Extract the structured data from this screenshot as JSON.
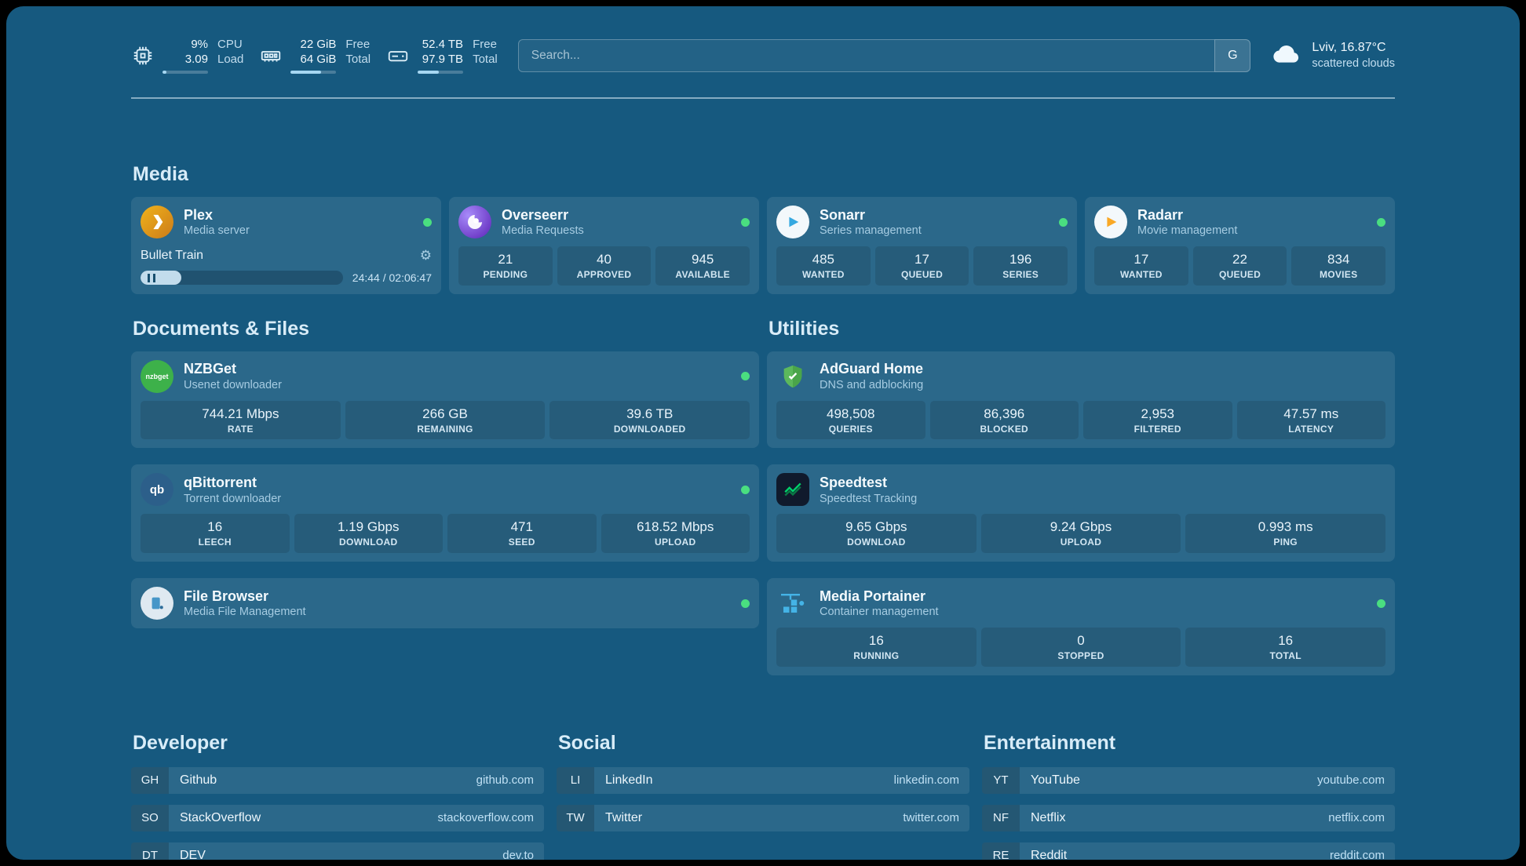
{
  "colors": {
    "background": "#16597f",
    "status_online": "#4ade80",
    "plex_amber": "#e8a00d",
    "overseerr_purple": "#6d28d9",
    "sonarr_blue": "#35a8e0",
    "radarr_orange": "#f9a825",
    "nzbget_green": "#3db14a",
    "adguard_green": "#5cb85c",
    "speedtest_green": "#00d26a",
    "portainer_blue": "#44b3e6"
  },
  "topbar": {
    "resources": [
      {
        "name": "cpu",
        "values": [
          "9%",
          "3.09"
        ],
        "labels": [
          "CPU",
          "Load"
        ],
        "fill": 9
      },
      {
        "name": "memory",
        "values": [
          "22 GiB",
          "64 GiB"
        ],
        "labels": [
          "Free",
          "Total"
        ],
        "fill": 66
      },
      {
        "name": "disk",
        "values": [
          "52.4 TB",
          "97.9 TB"
        ],
        "labels": [
          "Free",
          "Total"
        ],
        "fill": 47
      }
    ],
    "search": {
      "placeholder": "Search...",
      "button_label": "G"
    },
    "weather": {
      "location": "Lviv, 16.87°C",
      "condition": "scattered clouds"
    }
  },
  "media": {
    "heading": "Media",
    "plex": {
      "name": "Plex",
      "subtitle": "Media server",
      "player": {
        "title": "Bullet Train",
        "time": "24:44 / 02:06:47",
        "progress": 20
      }
    },
    "overseerr": {
      "name": "Overseerr",
      "subtitle": "Media Requests",
      "stats": [
        {
          "value": "21",
          "label": "PENDING"
        },
        {
          "value": "40",
          "label": "APPROVED"
        },
        {
          "value": "945",
          "label": "AVAILABLE"
        }
      ]
    },
    "sonarr": {
      "name": "Sonarr",
      "subtitle": "Series management",
      "stats": [
        {
          "value": "485",
          "label": "WANTED"
        },
        {
          "value": "17",
          "label": "QUEUED"
        },
        {
          "value": "196",
          "label": "SERIES"
        }
      ]
    },
    "radarr": {
      "name": "Radarr",
      "subtitle": "Movie management",
      "stats": [
        {
          "value": "17",
          "label": "WANTED"
        },
        {
          "value": "22",
          "label": "QUEUED"
        },
        {
          "value": "834",
          "label": "MOVIES"
        }
      ]
    }
  },
  "documents": {
    "heading": "Documents & Files",
    "nzbget": {
      "name": "NZBGet",
      "subtitle": "Usenet downloader",
      "icon_label": "nzbget",
      "stats": [
        {
          "value": "744.21 Mbps",
          "label": "RATE"
        },
        {
          "value": "266 GB",
          "label": "REMAINING"
        },
        {
          "value": "39.6 TB",
          "label": "DOWNLOADED"
        }
      ]
    },
    "qbittorrent": {
      "name": "qBittorrent",
      "subtitle": "Torrent downloader",
      "icon_label": "qb",
      "stats": [
        {
          "value": "16",
          "label": "LEECH"
        },
        {
          "value": "1.19 Gbps",
          "label": "DOWNLOAD"
        },
        {
          "value": "471",
          "label": "SEED"
        },
        {
          "value": "618.52 Mbps",
          "label": "UPLOAD"
        }
      ]
    },
    "filebrowser": {
      "name": "File Browser",
      "subtitle": "Media File Management"
    }
  },
  "utilities": {
    "heading": "Utilities",
    "adguard": {
      "name": "AdGuard Home",
      "subtitle": "DNS and adblocking",
      "stats": [
        {
          "value": "498,508",
          "label": "QUERIES"
        },
        {
          "value": "86,396",
          "label": "BLOCKED"
        },
        {
          "value": "2,953",
          "label": "FILTERED"
        },
        {
          "value": "47.57 ms",
          "label": "LATENCY"
        }
      ]
    },
    "speedtest": {
      "name": "Speedtest",
      "subtitle": "Speedtest Tracking",
      "stats": [
        {
          "value": "9.65 Gbps",
          "label": "DOWNLOAD"
        },
        {
          "value": "9.24 Gbps",
          "label": "UPLOAD"
        },
        {
          "value": "0.993 ms",
          "label": "PING"
        }
      ]
    },
    "portainer": {
      "name": "Media Portainer",
      "subtitle": "Container management",
      "stats": [
        {
          "value": "16",
          "label": "RUNNING"
        },
        {
          "value": "0",
          "label": "STOPPED"
        },
        {
          "value": "16",
          "label": "TOTAL"
        }
      ]
    }
  },
  "bookmarks": {
    "developer": {
      "heading": "Developer",
      "items": [
        {
          "abbr": "GH",
          "name": "Github",
          "url": "github.com"
        },
        {
          "abbr": "SO",
          "name": "StackOverflow",
          "url": "stackoverflow.com"
        },
        {
          "abbr": "DT",
          "name": "DEV",
          "url": "dev.to"
        }
      ]
    },
    "social": {
      "heading": "Social",
      "items": [
        {
          "abbr": "LI",
          "name": "LinkedIn",
          "url": "linkedin.com"
        },
        {
          "abbr": "TW",
          "name": "Twitter",
          "url": "twitter.com"
        }
      ]
    },
    "entertainment": {
      "heading": "Entertainment",
      "items": [
        {
          "abbr": "YT",
          "name": "YouTube",
          "url": "youtube.com"
        },
        {
          "abbr": "NF",
          "name": "Netflix",
          "url": "netflix.com"
        },
        {
          "abbr": "RE",
          "name": "Reddit",
          "url": "reddit.com"
        }
      ]
    }
  }
}
